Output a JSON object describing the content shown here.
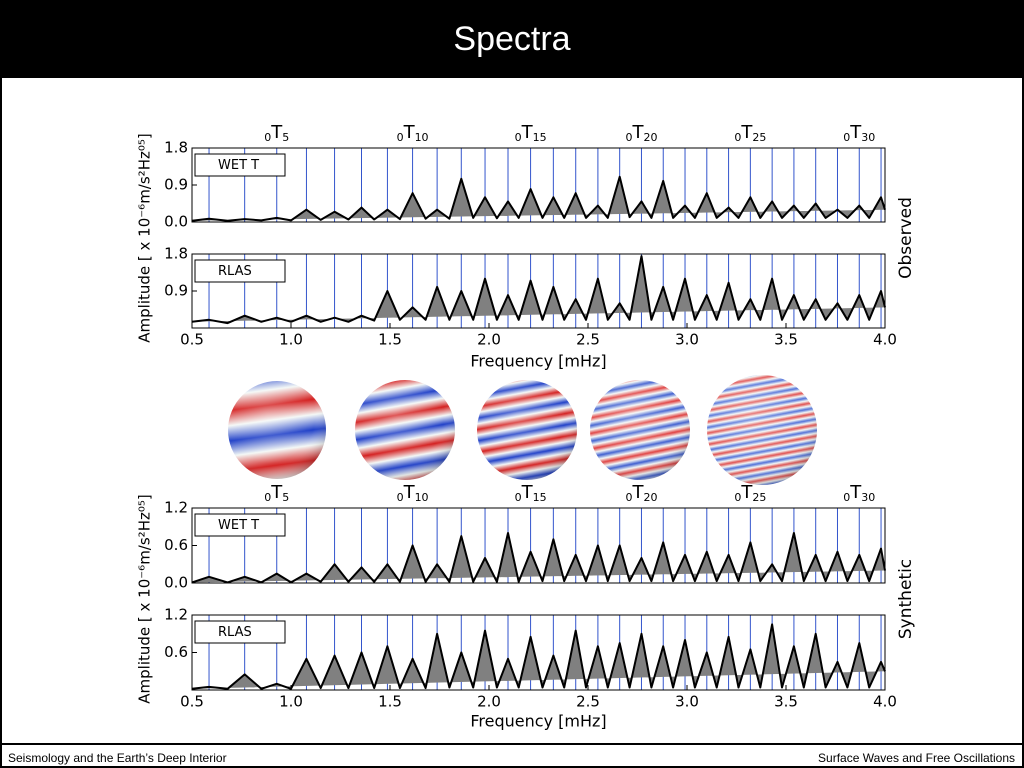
{
  "header": {
    "title": "Spectra"
  },
  "footer": {
    "left": "Seismology and the Earth’s Deep Interior",
    "right": "Surface Waves and Free Oscillations"
  },
  "groups": [
    {
      "label": "Observed",
      "ylabel": "Amplitude [ x 10⁻⁶m/s²Hz⁰⁵]",
      "xlabel": "Frequency [mHz]"
    },
    {
      "label": "Synthetic",
      "ylabel": "Amplitude [ x 10⁻⁶m/s²Hz⁰⁵]",
      "xlabel": "Frequency [mHz]"
    }
  ],
  "mode_lines": [
    0.586,
    0.766,
    0.928,
    1.078,
    1.22,
    1.356,
    1.487,
    1.614,
    1.738,
    1.86,
    1.98,
    2.096,
    2.21,
    2.325,
    2.438,
    2.55,
    2.66,
    2.77,
    2.88,
    2.99,
    3.1,
    3.21,
    3.32,
    3.43,
    3.54,
    3.65,
    3.76,
    3.87,
    3.98
  ],
  "mode_line_color": "#3355cc",
  "chart_data": [
    {
      "type": "area",
      "group": 0,
      "annotations": [
        {
          "x": 0.928,
          "pre": "0",
          "main": "T",
          "sub": "5"
        },
        {
          "x": 1.614,
          "pre": "0",
          "main": "T",
          "sub": "10"
        },
        {
          "x": 2.21,
          "pre": "0",
          "main": "T",
          "sub": "15"
        },
        {
          "x": 2.77,
          "pre": "0",
          "main": "T",
          "sub": "20"
        },
        {
          "x": 3.32,
          "pre": "0",
          "main": "T",
          "sub": "25"
        },
        {
          "x": 3.87,
          "pre": "0",
          "main": "T",
          "sub": "30"
        }
      ],
      "x": [
        0.5,
        0.586,
        0.68,
        0.766,
        0.85,
        0.928,
        1.0,
        1.078,
        1.15,
        1.22,
        1.29,
        1.356,
        1.42,
        1.487,
        1.55,
        1.614,
        1.68,
        1.738,
        1.8,
        1.86,
        1.92,
        1.98,
        2.04,
        2.096,
        2.15,
        2.21,
        2.27,
        2.325,
        2.38,
        2.438,
        2.49,
        2.55,
        2.6,
        2.66,
        2.71,
        2.77,
        2.82,
        2.88,
        2.93,
        2.99,
        3.04,
        3.1,
        3.15,
        3.21,
        3.26,
        3.32,
        3.37,
        3.43,
        3.48,
        3.54,
        3.59,
        3.65,
        3.7,
        3.76,
        3.81,
        3.87,
        3.92,
        3.98,
        4.0
      ],
      "series": [
        {
          "name": "WET T",
          "color": "#808080",
          "values": [
            0.03,
            0.08,
            0.03,
            0.07,
            0.04,
            0.1,
            0.04,
            0.3,
            0.05,
            0.25,
            0.06,
            0.35,
            0.06,
            0.3,
            0.07,
            0.7,
            0.08,
            0.3,
            0.08,
            1.05,
            0.1,
            0.6,
            0.09,
            0.5,
            0.1,
            0.8,
            0.1,
            0.6,
            0.1,
            0.7,
            0.1,
            0.4,
            0.1,
            1.1,
            0.12,
            0.5,
            0.1,
            1.0,
            0.1,
            0.4,
            0.1,
            0.7,
            0.1,
            0.35,
            0.1,
            0.6,
            0.1,
            0.5,
            0.1,
            0.4,
            0.1,
            0.45,
            0.1,
            0.3,
            0.1,
            0.4,
            0.1,
            0.6,
            0.3
          ]
        }
      ],
      "xlim": [
        0.5,
        4.0
      ],
      "ylim": [
        0,
        1.8
      ],
      "yticks": [
        {
          "value": 0,
          "label": "0.0"
        },
        0.9,
        1.8
      ]
    },
    {
      "type": "area",
      "group": 0,
      "x": [
        0.5,
        0.586,
        0.68,
        0.766,
        0.85,
        0.928,
        1.0,
        1.078,
        1.15,
        1.22,
        1.29,
        1.356,
        1.42,
        1.487,
        1.55,
        1.614,
        1.68,
        1.738,
        1.8,
        1.86,
        1.92,
        1.98,
        2.04,
        2.096,
        2.15,
        2.21,
        2.27,
        2.325,
        2.38,
        2.438,
        2.49,
        2.55,
        2.6,
        2.66,
        2.71,
        2.77,
        2.82,
        2.88,
        2.93,
        2.99,
        3.04,
        3.1,
        3.15,
        3.21,
        3.26,
        3.32,
        3.37,
        3.43,
        3.48,
        3.54,
        3.59,
        3.65,
        3.7,
        3.76,
        3.81,
        3.87,
        3.92,
        3.98,
        4.0
      ],
      "series": [
        {
          "name": "RLAS",
          "color": "#808080",
          "values": [
            0.15,
            0.2,
            0.12,
            0.3,
            0.15,
            0.25,
            0.15,
            0.3,
            0.15,
            0.25,
            0.15,
            0.3,
            0.18,
            0.9,
            0.2,
            0.5,
            0.2,
            1.0,
            0.2,
            0.9,
            0.2,
            1.2,
            0.2,
            0.8,
            0.2,
            1.15,
            0.2,
            1.0,
            0.2,
            0.7,
            0.2,
            1.2,
            0.2,
            0.6,
            0.2,
            1.75,
            0.2,
            1.0,
            0.2,
            1.2,
            0.2,
            0.8,
            0.2,
            1.1,
            0.2,
            0.7,
            0.2,
            1.2,
            0.2,
            0.8,
            0.2,
            0.7,
            0.2,
            0.6,
            0.2,
            0.8,
            0.2,
            0.9,
            0.5
          ]
        }
      ],
      "xlim": [
        0.5,
        4.0
      ],
      "ylim": [
        0,
        1.8
      ],
      "yticks": [
        0.9,
        1.8
      ],
      "xticks": [
        0.5,
        {
          "value": 1,
          "label": "1.0"
        },
        1.5,
        {
          "value": 2,
          "label": "2.0"
        },
        2.5,
        {
          "value": 3,
          "label": "3.0"
        },
        3.5,
        {
          "value": 4,
          "label": "4.0"
        }
      ]
    },
    {
      "type": "area",
      "group": 1,
      "annotations": [
        {
          "x": 0.928,
          "pre": "0",
          "main": "T",
          "sub": "5"
        },
        {
          "x": 1.614,
          "pre": "0",
          "main": "T",
          "sub": "10"
        },
        {
          "x": 2.21,
          "pre": "0",
          "main": "T",
          "sub": "15"
        },
        {
          "x": 2.77,
          "pre": "0",
          "main": "T",
          "sub": "20"
        },
        {
          "x": 3.32,
          "pre": "0",
          "main": "T",
          "sub": "25"
        },
        {
          "x": 3.87,
          "pre": "0",
          "main": "T",
          "sub": "30"
        }
      ],
      "x": [
        0.5,
        0.586,
        0.68,
        0.766,
        0.85,
        0.928,
        1.0,
        1.078,
        1.15,
        1.22,
        1.29,
        1.356,
        1.42,
        1.487,
        1.55,
        1.614,
        1.68,
        1.738,
        1.8,
        1.86,
        1.92,
        1.98,
        2.04,
        2.096,
        2.15,
        2.21,
        2.27,
        2.325,
        2.38,
        2.438,
        2.49,
        2.55,
        2.6,
        2.66,
        2.71,
        2.77,
        2.82,
        2.88,
        2.93,
        2.99,
        3.04,
        3.1,
        3.15,
        3.21,
        3.26,
        3.32,
        3.37,
        3.43,
        3.48,
        3.54,
        3.59,
        3.65,
        3.7,
        3.76,
        3.81,
        3.87,
        3.92,
        3.98,
        4.0
      ],
      "series": [
        {
          "name": "WET T",
          "color": "#808080",
          "values": [
            0.01,
            0.1,
            0.01,
            0.1,
            0.01,
            0.15,
            0.01,
            0.15,
            0.02,
            0.3,
            0.02,
            0.25,
            0.02,
            0.3,
            0.02,
            0.6,
            0.02,
            0.3,
            0.02,
            0.75,
            0.02,
            0.4,
            0.02,
            0.8,
            0.02,
            0.5,
            0.03,
            0.7,
            0.03,
            0.45,
            0.03,
            0.6,
            0.03,
            0.6,
            0.03,
            0.4,
            0.03,
            0.65,
            0.03,
            0.45,
            0.03,
            0.5,
            0.03,
            0.45,
            0.03,
            0.65,
            0.03,
            0.3,
            0.03,
            0.8,
            0.03,
            0.45,
            0.03,
            0.5,
            0.03,
            0.45,
            0.03,
            0.55,
            0.2
          ]
        }
      ],
      "xlim": [
        0.5,
        4.0
      ],
      "ylim": [
        0,
        1.2
      ],
      "yticks": [
        {
          "value": 0,
          "label": "0.0"
        },
        0.6,
        1.2
      ]
    },
    {
      "type": "area",
      "group": 1,
      "x": [
        0.5,
        0.586,
        0.68,
        0.766,
        0.85,
        0.928,
        1.0,
        1.078,
        1.15,
        1.22,
        1.29,
        1.356,
        1.42,
        1.487,
        1.55,
        1.614,
        1.68,
        1.738,
        1.8,
        1.86,
        1.92,
        1.98,
        2.04,
        2.096,
        2.15,
        2.21,
        2.27,
        2.325,
        2.38,
        2.438,
        2.49,
        2.55,
        2.6,
        2.66,
        2.71,
        2.77,
        2.82,
        2.88,
        2.93,
        2.99,
        3.04,
        3.1,
        3.15,
        3.21,
        3.26,
        3.32,
        3.37,
        3.43,
        3.48,
        3.54,
        3.59,
        3.65,
        3.7,
        3.76,
        3.81,
        3.87,
        3.92,
        3.98,
        4.0
      ],
      "series": [
        {
          "name": "RLAS",
          "color": "#808080",
          "values": [
            0.02,
            0.05,
            0.02,
            0.25,
            0.02,
            0.1,
            0.02,
            0.5,
            0.03,
            0.55,
            0.03,
            0.6,
            0.03,
            0.7,
            0.03,
            0.5,
            0.03,
            0.9,
            0.04,
            0.6,
            0.04,
            0.95,
            0.04,
            0.5,
            0.04,
            0.85,
            0.04,
            0.55,
            0.04,
            0.95,
            0.04,
            0.7,
            0.04,
            0.75,
            0.04,
            0.9,
            0.04,
            0.7,
            0.04,
            0.8,
            0.04,
            0.6,
            0.04,
            0.85,
            0.04,
            0.65,
            0.04,
            1.05,
            0.04,
            0.7,
            0.04,
            0.9,
            0.04,
            0.45,
            0.04,
            0.75,
            0.04,
            0.45,
            0.3
          ]
        }
      ],
      "xlim": [
        0.5,
        4.0
      ],
      "ylim": [
        0,
        1.2
      ],
      "yticks": [
        0.6,
        1.2
      ],
      "xticks": [
        0.5,
        {
          "value": 1,
          "label": "1.0"
        },
        1.5,
        {
          "value": 2,
          "label": "2.0"
        },
        2.5,
        {
          "value": 3,
          "label": "3.0"
        },
        3.5,
        {
          "value": 4,
          "label": "4.0"
        }
      ]
    }
  ]
}
